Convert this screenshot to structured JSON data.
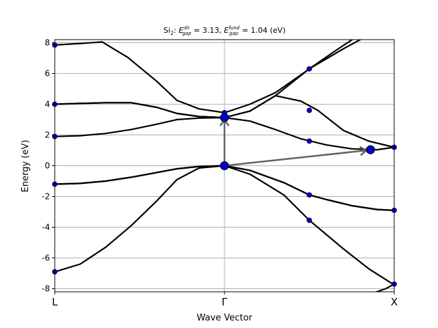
{
  "chart_data": {
    "type": "line",
    "title_parts": {
      "prefix": "Si",
      "prefix_sub": "2",
      "sep": ": ",
      "e1": "E",
      "e1_sup": "dir",
      "e1_sub": "gap",
      "v1": " = 3.13, ",
      "e2": "E",
      "e2_sup": "fund",
      "e2_sub": "gap",
      "v2": " = 1.04 (eV)"
    },
    "xlabel": "Wave Vector",
    "ylabel": "Energy (eV)",
    "xlim": [
      0,
      2
    ],
    "ylim": [
      -8.2,
      8.2
    ],
    "yticks": [
      -8,
      -6,
      -4,
      -2,
      0,
      2,
      4,
      6,
      8
    ],
    "kpoints": [
      {
        "label": "L",
        "x": 0
      },
      {
        "label": "Γ",
        "x": 1
      },
      {
        "label": "X",
        "x": 2
      }
    ],
    "grid": true,
    "colors": {
      "band": "#000000",
      "marker": "#0000cc",
      "arrow": "#636363"
    },
    "bands": [
      {
        "x": [
          0,
          0.15,
          0.3,
          0.45,
          0.6,
          0.72,
          0.85,
          1.0,
          1.15,
          1.35,
          1.5,
          1.7,
          1.85,
          2.0
        ],
        "y": [
          -6.9,
          -6.4,
          -5.3,
          -3.9,
          -2.3,
          -0.9,
          -0.15,
          0.0,
          -0.55,
          -1.9,
          -3.55,
          -5.4,
          -6.7,
          -7.75
        ]
      },
      {
        "x": [
          0,
          0.15,
          0.3,
          0.45,
          0.6,
          0.72,
          0.85,
          1.0,
          1.15,
          1.35,
          1.5,
          1.6,
          1.75,
          1.9,
          2.0
        ],
        "y": [
          -1.2,
          -1.15,
          -1.0,
          -0.75,
          -0.45,
          -0.2,
          -0.05,
          0.0,
          -0.3,
          -1.1,
          -1.9,
          -2.2,
          -2.6,
          -2.85,
          -2.9
        ]
      },
      {
        "x": [
          0,
          0.15,
          0.3,
          0.45,
          0.6,
          0.72,
          0.85,
          1.0,
          1.15,
          1.35,
          1.5,
          1.6,
          1.75,
          1.9,
          2.0
        ],
        "y": [
          -1.2,
          -1.15,
          -1.0,
          -0.75,
          -0.45,
          -0.2,
          -0.05,
          0.0,
          -0.3,
          -1.1,
          -1.9,
          -2.2,
          -2.6,
          -2.85,
          -2.9
        ]
      },
      {
        "x": [
          0,
          0.15,
          0.3,
          0.45,
          0.6,
          0.72,
          0.85,
          1.0,
          1.15,
          1.3,
          1.45,
          1.6,
          1.75,
          1.9,
          2.0
        ],
        "y": [
          1.9,
          1.95,
          2.1,
          2.35,
          2.7,
          3.0,
          3.1,
          3.13,
          2.9,
          2.35,
          1.75,
          1.35,
          1.1,
          1.04,
          1.2
        ]
      },
      {
        "x": [
          0,
          0.15,
          0.3,
          0.45,
          0.6,
          0.72,
          0.85,
          1.0,
          1.15,
          1.3,
          1.45,
          1.55,
          1.7,
          1.85,
          2.0
        ],
        "y": [
          4.0,
          4.05,
          4.1,
          4.1,
          3.8,
          3.4,
          3.2,
          3.13,
          3.55,
          4.55,
          4.2,
          3.6,
          2.3,
          1.6,
          1.2
        ]
      },
      {
        "x": [
          0,
          0.15,
          0.3,
          0.45,
          0.6,
          0.72,
          0.85,
          1.0,
          1.15,
          1.3,
          1.5,
          1.7,
          1.85
        ],
        "y": [
          4.0,
          4.05,
          4.1,
          4.1,
          3.8,
          3.4,
          3.2,
          3.13,
          3.55,
          4.55,
          6.3,
          7.6,
          8.5
        ]
      },
      {
        "x": [
          0,
          0.15,
          0.28,
          0.43,
          0.6,
          0.72,
          0.85,
          1.0,
          1.15,
          1.3,
          1.45,
          1.5,
          1.65,
          1.78
        ],
        "y": [
          7.85,
          7.95,
          8.05,
          7.05,
          5.5,
          4.25,
          3.7,
          3.45,
          4.0,
          4.75,
          5.9,
          6.3,
          7.45,
          8.4
        ]
      },
      {
        "x": [
          1.82,
          1.95,
          2.0
        ],
        "y": [
          -8.5,
          -8.0,
          -7.7
        ]
      }
    ],
    "markers": [
      {
        "x": 0,
        "y": -6.9
      },
      {
        "x": 0,
        "y": -1.2
      },
      {
        "x": 0,
        "y": 1.9
      },
      {
        "x": 0,
        "y": 4.0
      },
      {
        "x": 0,
        "y": 7.85
      },
      {
        "x": 1.0,
        "y": 3.45
      },
      {
        "x": 1.5,
        "y": 6.3
      },
      {
        "x": 1.5,
        "y": 3.6
      },
      {
        "x": 1.5,
        "y": 1.6
      },
      {
        "x": 1.5,
        "y": -1.9
      },
      {
        "x": 1.5,
        "y": -3.55
      },
      {
        "x": 2.0,
        "y": 1.2
      },
      {
        "x": 2.0,
        "y": -2.9
      },
      {
        "x": 2.0,
        "y": -7.7
      }
    ],
    "vbm": {
      "x": 1.0,
      "y": 0.0
    },
    "cbm_direct": {
      "x": 1.0,
      "y": 3.13
    },
    "cbm_fundamental": {
      "x": 1.86,
      "y": 1.04
    }
  }
}
